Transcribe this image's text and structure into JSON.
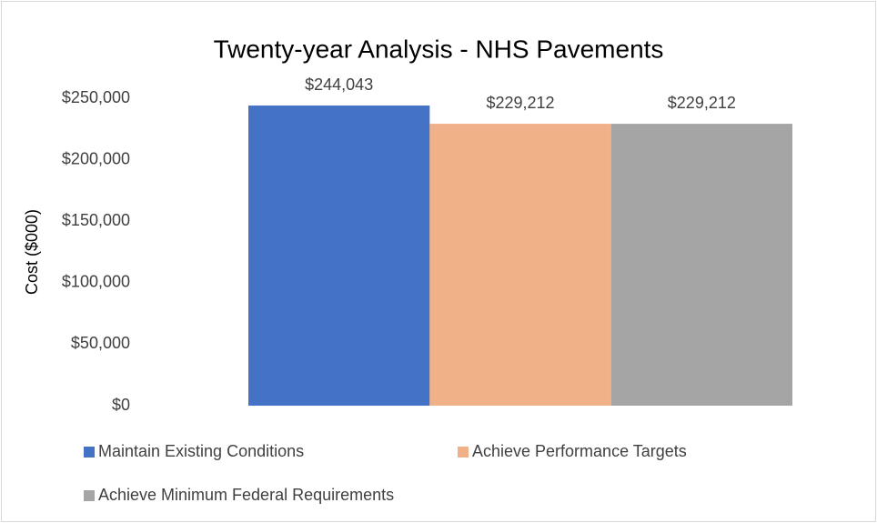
{
  "chart_data": {
    "type": "bar",
    "title": "Twenty-year Analysis - NHS Pavements",
    "y_label": "Cost ($000)",
    "categories": [
      null
    ],
    "series": [
      {
        "name": "Maintain Existing Conditions",
        "color": "#4472c4",
        "values": [
          244043
        ],
        "value_labels": [
          "$244,043"
        ]
      },
      {
        "name": "Achieve Performance Targets",
        "color": "#f0b088",
        "values": [
          229212
        ],
        "value_labels": [
          "$229,212"
        ]
      },
      {
        "name": "Achieve Minimum Federal Requirements",
        "color": "#a5a5a5",
        "values": [
          229212
        ],
        "value_labels": [
          "$229,212"
        ]
      }
    ],
    "ylim": [
      0,
      250000
    ],
    "yticks": [
      {
        "value": 0,
        "label": "$0"
      },
      {
        "value": 50000,
        "label": "$50,000"
      },
      {
        "value": 100000,
        "label": "$100,000"
      },
      {
        "value": 150000,
        "label": "$150,000"
      },
      {
        "value": 200000,
        "label": "$200,000"
      },
      {
        "value": 250000,
        "label": "$250,000"
      }
    ],
    "grid": false,
    "legend": "bottom"
  }
}
